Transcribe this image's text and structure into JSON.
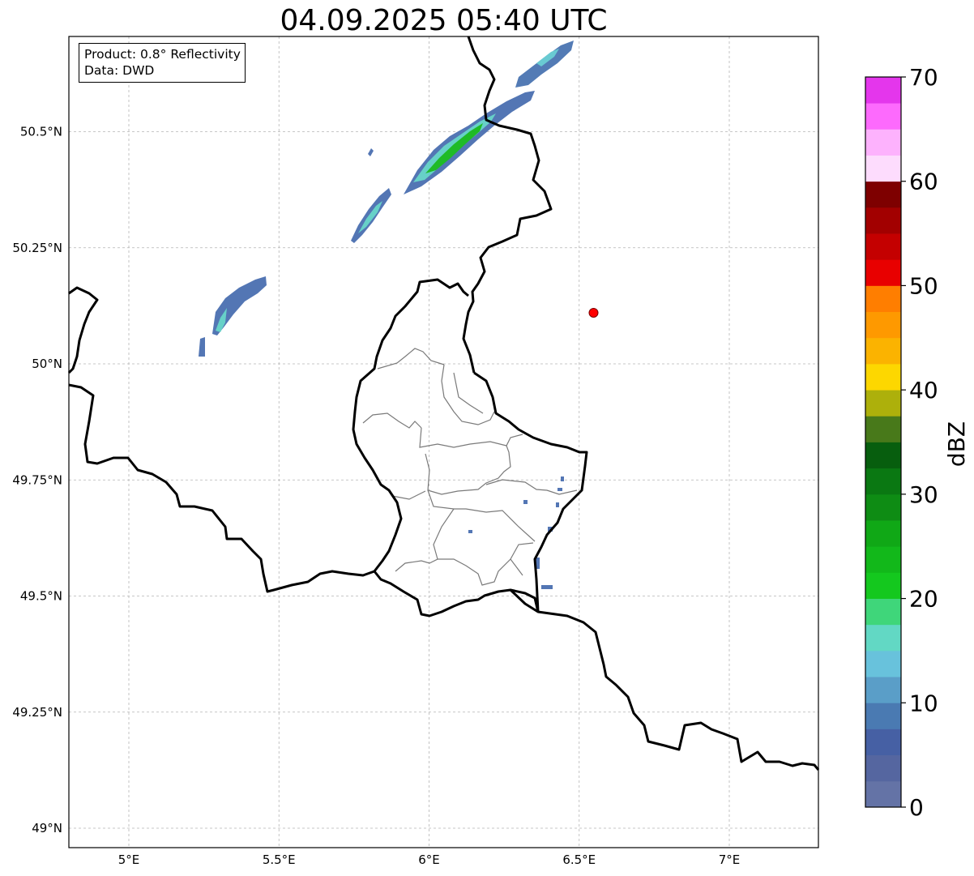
{
  "title": "04.09.2025 05:40 UTC",
  "info": {
    "product": "Product: 0.8° Reflectivity",
    "source": "Data: DWD"
  },
  "map": {
    "extent": {
      "lon_min": 4.8,
      "lon_max": 7.3,
      "lat_min": 48.95,
      "lat_max": 50.7
    },
    "lon_ticks": [
      {
        "value": 5.0,
        "label": "5°E"
      },
      {
        "value": 5.5,
        "label": "5.5°E"
      },
      {
        "value": 6.0,
        "label": "6°E"
      },
      {
        "value": 6.5,
        "label": "6.5°E"
      },
      {
        "value": 7.0,
        "label": "7°E"
      }
    ],
    "lat_ticks": [
      {
        "value": 49.0,
        "label": "49°N"
      },
      {
        "value": 49.25,
        "label": "49.25°N"
      },
      {
        "value": 49.5,
        "label": "49.5°N"
      },
      {
        "value": 49.75,
        "label": "49.75°N"
      },
      {
        "value": 50.0,
        "label": "50°N"
      },
      {
        "value": 50.25,
        "label": "50.25°N"
      },
      {
        "value": 50.5,
        "label": "50.5°N"
      }
    ],
    "radar_site": {
      "lon": 6.548,
      "lat": 50.11,
      "color": "#ff0000"
    }
  },
  "colorbar": {
    "label": "dBZ",
    "min": 0,
    "max": 70,
    "step": 2.5,
    "ticks": [
      0,
      10,
      20,
      30,
      40,
      50,
      60,
      70
    ],
    "colors": [
      "#6473a6",
      "#5566a0",
      "#4660a4",
      "#4a7ab2",
      "#5a9ec8",
      "#68c2dc",
      "#62d8c4",
      "#3fd67a",
      "#14c81e",
      "#12b81a",
      "#10a816",
      "#0e8c14",
      "#0a7812",
      "#075e0e",
      "#48791a",
      "#adb00b",
      "#fdd700",
      "#fbb300",
      "#fe9900",
      "#ff7e00",
      "#e80000",
      "#c40000",
      "#a20000",
      "#7e0000",
      "#fddcfd",
      "#fdb2fd",
      "#fd6afd",
      "#e436ec"
    ]
  }
}
